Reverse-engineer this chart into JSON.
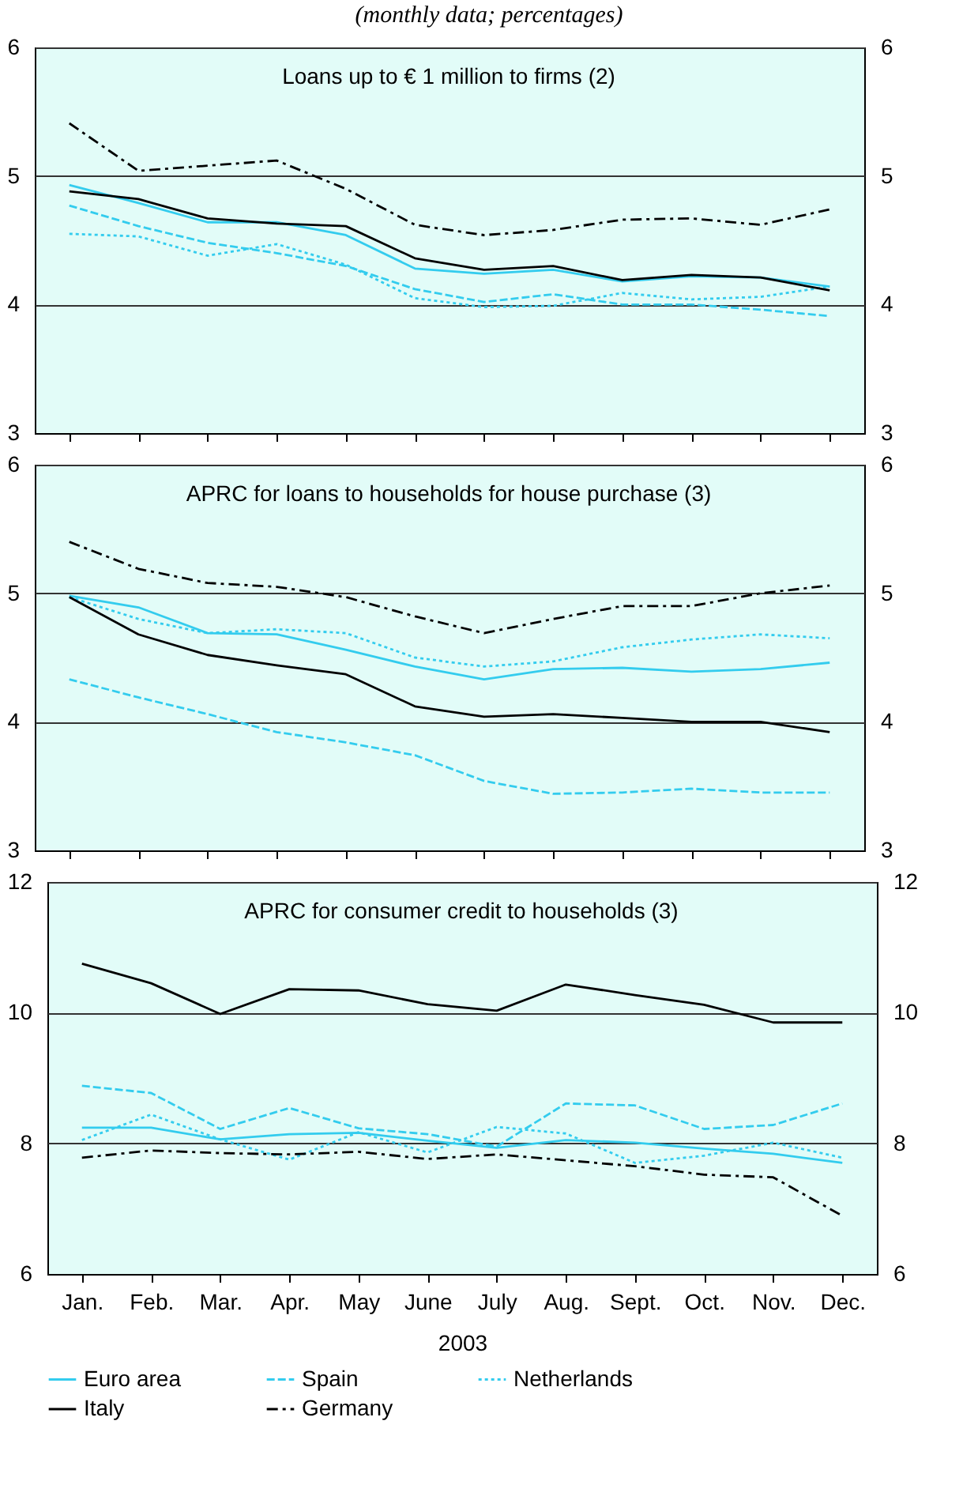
{
  "chart_data": [
    {
      "type": "line",
      "title": "Loans up to € 1 million to firms (2)",
      "annotations": [
        "(monthly data; percentages)"
      ],
      "categories": [
        null,
        null,
        null,
        null,
        null,
        null,
        null,
        null,
        null,
        null,
        null,
        null
      ],
      "ylim": [
        3,
        6
      ],
      "yticks": [
        3,
        4,
        5,
        6
      ],
      "y2lim": [
        3,
        6
      ],
      "y2ticks": [
        3,
        4,
        5,
        6
      ],
      "grid": "y",
      "tick_labels": "y",
      "marker": "none",
      "series": [
        {
          "color": "#33ccee",
          "line_style": "solid",
          "values": [
            4.93,
            4.79,
            4.64,
            4.64,
            4.54,
            4.28,
            4.24,
            4.27,
            4.18,
            4.22,
            4.21,
            4.14
          ]
        },
        {
          "color": "#33ccee",
          "line_style": "dashed",
          "values": [
            4.77,
            4.61,
            4.48,
            4.4,
            4.3,
            4.12,
            4.02,
            4.08,
            4.0,
            4.0,
            3.96,
            3.91
          ]
        },
        {
          "color": "#33ccee",
          "line_style": "dotted",
          "values": [
            4.55,
            4.53,
            4.38,
            4.47,
            4.31,
            4.05,
            3.98,
            3.99,
            4.09,
            4.04,
            4.06,
            4.14
          ]
        },
        {
          "color": "#000000",
          "line_style": "solid",
          "values": [
            4.88,
            4.82,
            4.67,
            4.63,
            4.61,
            4.36,
            4.27,
            4.3,
            4.19,
            4.23,
            4.21,
            4.11
          ]
        },
        {
          "color": "#000000",
          "line_style": "dashdot",
          "values": [
            5.41,
            5.04,
            5.08,
            5.12,
            4.9,
            4.62,
            4.54,
            4.58,
            4.66,
            4.67,
            4.62,
            4.74
          ]
        }
      ]
    },
    {
      "type": "line",
      "title": "APRC for loans to households for house purchase (3)",
      "categories": [
        null,
        null,
        null,
        null,
        null,
        null,
        null,
        null,
        null,
        null,
        null,
        null
      ],
      "ylim": [
        3,
        6
      ],
      "yticks": [
        3,
        4,
        5,
        6
      ],
      "y2lim": [
        3,
        6
      ],
      "y2ticks": [
        3,
        4,
        5,
        6
      ],
      "grid": "y",
      "tick_labels": "y",
      "marker": "none",
      "series": [
        {
          "color": "#33ccee",
          "line_style": "solid",
          "values": [
            4.98,
            4.89,
            4.69,
            4.68,
            4.56,
            4.43,
            4.33,
            4.41,
            4.42,
            4.39,
            4.41,
            4.46
          ]
        },
        {
          "color": "#33ccee",
          "line_style": "dashed",
          "values": [
            4.33,
            4.19,
            4.06,
            3.92,
            3.84,
            3.74,
            3.54,
            3.44,
            3.45,
            3.48,
            3.45,
            3.45
          ]
        },
        {
          "color": "#33ccee",
          "line_style": "dotted",
          "values": [
            4.97,
            4.8,
            4.69,
            4.72,
            4.69,
            4.5,
            4.43,
            4.47,
            4.58,
            4.64,
            4.68,
            4.65
          ]
        },
        {
          "color": "#000000",
          "line_style": "solid",
          "values": [
            4.97,
            4.68,
            4.52,
            4.44,
            4.37,
            4.12,
            4.04,
            4.06,
            4.03,
            4.0,
            4.0,
            3.92
          ]
        },
        {
          "color": "#000000",
          "line_style": "dashdot",
          "values": [
            5.4,
            5.19,
            5.08,
            5.05,
            4.97,
            4.82,
            4.69,
            4.8,
            4.9,
            4.9,
            5.0,
            5.06
          ]
        }
      ]
    },
    {
      "type": "line",
      "title": "APRC for consumer credit to households (3)",
      "xlabel": "2003",
      "categories": [
        "Jan.",
        "Feb.",
        "Mar.",
        "Apr.",
        "May",
        "June",
        "July",
        "Aug.",
        "Sept.",
        "Oct.",
        "Nov.",
        "Dec."
      ],
      "ylim": [
        6,
        12
      ],
      "yticks": [
        6,
        8,
        10,
        12
      ],
      "y2lim": [
        6,
        12
      ],
      "y2ticks": [
        6,
        8,
        10,
        12
      ],
      "grid": "y",
      "legend": "bottom",
      "marker": "none",
      "series": [
        {
          "name": "Euro area",
          "color": "#33ccee",
          "line_style": "solid",
          "values": [
            8.24,
            8.24,
            8.06,
            8.14,
            8.16,
            8.04,
            7.93,
            8.05,
            8.01,
            7.92,
            7.84,
            7.7
          ]
        },
        {
          "name": "Spain",
          "color": "#33ccee",
          "line_style": "dashed",
          "values": [
            8.88,
            8.77,
            8.22,
            8.54,
            8.23,
            8.14,
            7.95,
            8.61,
            8.58,
            8.22,
            8.28,
            8.61
          ]
        },
        {
          "name": "Netherlands",
          "color": "#33ccee",
          "line_style": "dotted",
          "values": [
            8.05,
            8.44,
            8.06,
            7.75,
            8.17,
            7.86,
            8.25,
            8.15,
            7.7,
            7.81,
            8.01,
            7.78
          ]
        },
        {
          "name": "Italy",
          "color": "#000000",
          "line_style": "solid",
          "values": [
            10.75,
            10.45,
            9.98,
            10.36,
            10.34,
            10.13,
            10.03,
            10.43,
            10.27,
            10.12,
            9.85,
            9.85
          ]
        },
        {
          "name": "Germany",
          "color": "#000000",
          "line_style": "dashdot",
          "values": [
            7.78,
            7.89,
            7.85,
            7.83,
            7.87,
            7.76,
            7.83,
            7.74,
            7.65,
            7.52,
            7.48,
            6.89
          ]
        }
      ]
    }
  ]
}
